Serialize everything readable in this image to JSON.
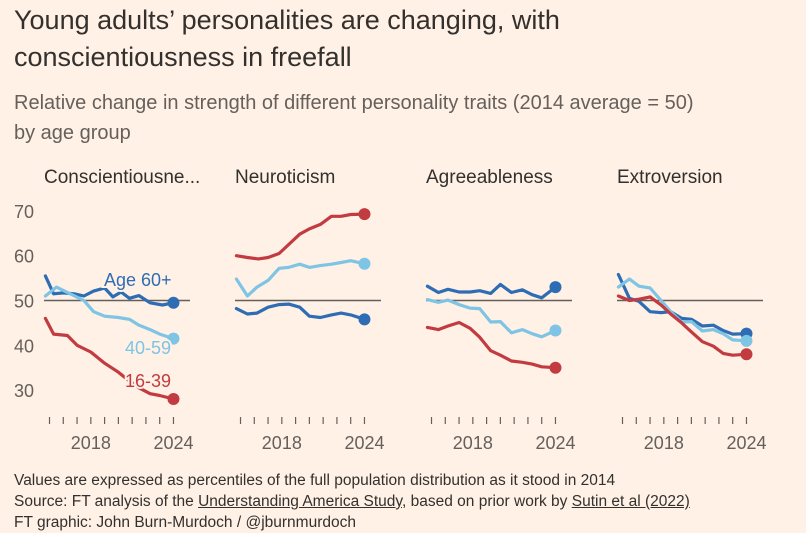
{
  "header": {
    "title_line1": "Young adults’ personalities are changing, with",
    "title_line2": "conscientiousness in freefall",
    "subtitle_line1": "Relative change in strength of different personality traits (2014 average = 50)",
    "subtitle_line2": "by age group"
  },
  "footer": {
    "note": "Values are expressed as percentiles of the full population distribution as it stood in 2014",
    "source_prefix": "Source: FT analysis of the ",
    "source_link1": "Understanding America Study",
    "source_middle": ", based on prior work by ",
    "source_link2": "Sutin et al (2022)",
    "credit": "FT graphic: John Burn-Murdoch / @jburnmurdoch"
  },
  "colors": {
    "background": "#fff1e5",
    "age60": "#2e6db4",
    "age40": "#7ec4e4",
    "age16": "#c23b40",
    "reference": "#66605c"
  },
  "chart_data": {
    "type": "line",
    "y_ticks": [
      30,
      40,
      50,
      60,
      70
    ],
    "ylim": [
      26,
      72
    ],
    "x_range": [
      2014.6,
      2025.2
    ],
    "x_tick_labels": [
      "2018",
      "2024"
    ],
    "x_tick_label_values": [
      2018,
      2024
    ],
    "x_minor_ticks": [
      2015,
      2016,
      2017,
      2018,
      2019,
      2020,
      2021,
      2022,
      2023,
      2024
    ],
    "reference_line": 50,
    "series_labels": [
      {
        "text": "Age 60+",
        "panel": 0,
        "series": 0
      },
      {
        "text": "40-59",
        "panel": 0,
        "series": 1
      },
      {
        "text": "16-39",
        "panel": 0,
        "series": 2
      }
    ],
    "panels": [
      {
        "title": "Conscientiousne...",
        "series": [
          {
            "name": "Age 60+",
            "color": "#2e6db4",
            "x": [
              2014.7,
              2015.3,
              2016,
              2016.8,
              2017.5,
              2018.2,
              2019,
              2019.6,
              2020.2,
              2020.8,
              2021.5,
              2022.3,
              2023.2,
              2024
            ],
            "y": [
              55.5,
              51.5,
              51.7,
              51.5,
              51,
              52.1,
              52.8,
              50.8,
              51.9,
              50.5,
              51.1,
              49.5,
              49,
              49.5
            ]
          },
          {
            "name": "40-59",
            "color": "#7ec4e4",
            "x": [
              2014.7,
              2015.5,
              2016.5,
              2017.5,
              2018.2,
              2019,
              2020,
              2020.8,
              2021.5,
              2022.3,
              2023,
              2024
            ],
            "y": [
              51,
              53,
              51.5,
              50,
              47.5,
              46.5,
              46.2,
              45.8,
              44.5,
              43.5,
              42.5,
              41.5
            ]
          },
          {
            "name": "16-39",
            "color": "#c23b40",
            "x": [
              2014.7,
              2015.3,
              2016.3,
              2017,
              2018,
              2019,
              2020,
              2020.8,
              2021.5,
              2022.3,
              2023,
              2024
            ],
            "y": [
              46,
              42.5,
              42.2,
              40,
              38.5,
              36,
              34,
              32,
              30.5,
              29.2,
              28.8,
              28
            ]
          }
        ]
      },
      {
        "title": "Neuroticism",
        "series": [
          {
            "name": "Age 60+",
            "color": "#2e6db4",
            "x": [
              2014.7,
              2015.5,
              2016.2,
              2017,
              2017.8,
              2018.5,
              2019.3,
              2020,
              2020.8,
              2021.6,
              2022.3,
              2023,
              2024
            ],
            "y": [
              48.2,
              47,
              47.2,
              48.5,
              49.1,
              49.2,
              48.5,
              46.5,
              46.2,
              46.8,
              47.2,
              46.8,
              45.8
            ]
          },
          {
            "name": "40-59",
            "color": "#7ec4e4",
            "x": [
              2014.7,
              2015.5,
              2016.2,
              2017,
              2017.8,
              2018.5,
              2019.3,
              2020,
              2020.8,
              2021.6,
              2022.3,
              2023,
              2024
            ],
            "y": [
              54.8,
              51,
              53,
              54.5,
              57.2,
              57.4,
              58.1,
              57.4,
              57.8,
              58.1,
              58.5,
              58.9,
              58.2
            ]
          },
          {
            "name": "16-39",
            "color": "#c23b40",
            "x": [
              2014.7,
              2015.5,
              2016.3,
              2017,
              2017.8,
              2018.5,
              2019.3,
              2020,
              2020.8,
              2021.6,
              2022.3,
              2023,
              2024
            ],
            "y": [
              60,
              59.6,
              59.3,
              59.6,
              60.5,
              62.5,
              64.8,
              66,
              67,
              68.8,
              68.8,
              69.2,
              69.3
            ]
          }
        ]
      },
      {
        "title": "Agreeableness",
        "series": [
          {
            "name": "Age 60+",
            "color": "#2e6db4",
            "x": [
              2014.7,
              2015.5,
              2016.2,
              2017,
              2017.8,
              2018.5,
              2019.3,
              2020,
              2020.8,
              2021.6,
              2022.3,
              2023,
              2024
            ],
            "y": [
              53.2,
              51.8,
              52.5,
              51.9,
              51.9,
              52.2,
              51.6,
              53.6,
              51.8,
              52.4,
              51.3,
              50.6,
              53
            ]
          },
          {
            "name": "40-59",
            "color": "#7ec4e4",
            "x": [
              2014.7,
              2015.5,
              2016.2,
              2017,
              2017.8,
              2018.5,
              2019.3,
              2020,
              2020.8,
              2021.6,
              2022.3,
              2023,
              2024
            ],
            "y": [
              50.2,
              49.6,
              50.1,
              49.1,
              48.3,
              48.2,
              45.2,
              45.3,
              42.8,
              43.5,
              42.6,
              41.9,
              43.3
            ]
          },
          {
            "name": "16-39",
            "color": "#c23b40",
            "x": [
              2014.7,
              2015.5,
              2016.2,
              2017,
              2017.8,
              2018.5,
              2019.3,
              2020,
              2020.8,
              2021.6,
              2022.3,
              2023,
              2024
            ],
            "y": [
              44,
              43.5,
              44.3,
              45.1,
              43.8,
              41.8,
              38.8,
              37.8,
              36.5,
              36.2,
              35.8,
              35.2,
              35
            ]
          }
        ]
      },
      {
        "title": "Extroversion",
        "series": [
          {
            "name": "Age 60+",
            "color": "#2e6db4",
            "x": [
              2014.7,
              2015.5,
              2016.2,
              2017,
              2017.8,
              2018.5,
              2019.3,
              2020,
              2020.8,
              2021.6,
              2022.3,
              2023,
              2024
            ],
            "y": [
              55.8,
              50.5,
              49.8,
              47.5,
              47.3,
              47.5,
              46,
              45.8,
              44.3,
              44.5,
              43.3,
              42.5,
              42.6
            ]
          },
          {
            "name": "40-59",
            "color": "#7ec4e4",
            "x": [
              2014.7,
              2015.5,
              2016.2,
              2017,
              2017.8,
              2018.5,
              2019.3,
              2020,
              2020.8,
              2021.6,
              2022.3,
              2023,
              2024
            ],
            "y": [
              53,
              54.8,
              53.2,
              52.8,
              50,
              47.5,
              45.2,
              45.3,
              43.2,
              43.5,
              42.6,
              41.2,
              41
            ]
          },
          {
            "name": "16-39",
            "color": "#c23b40",
            "x": [
              2014.7,
              2015.5,
              2016.2,
              2017,
              2017.8,
              2018.5,
              2019.3,
              2020,
              2020.8,
              2021.6,
              2022.3,
              2023,
              2024
            ],
            "y": [
              51,
              50,
              50.3,
              50.8,
              49,
              47,
              45,
              43,
              40.8,
              39.8,
              38.2,
              37.8,
              38
            ]
          }
        ]
      }
    ]
  }
}
